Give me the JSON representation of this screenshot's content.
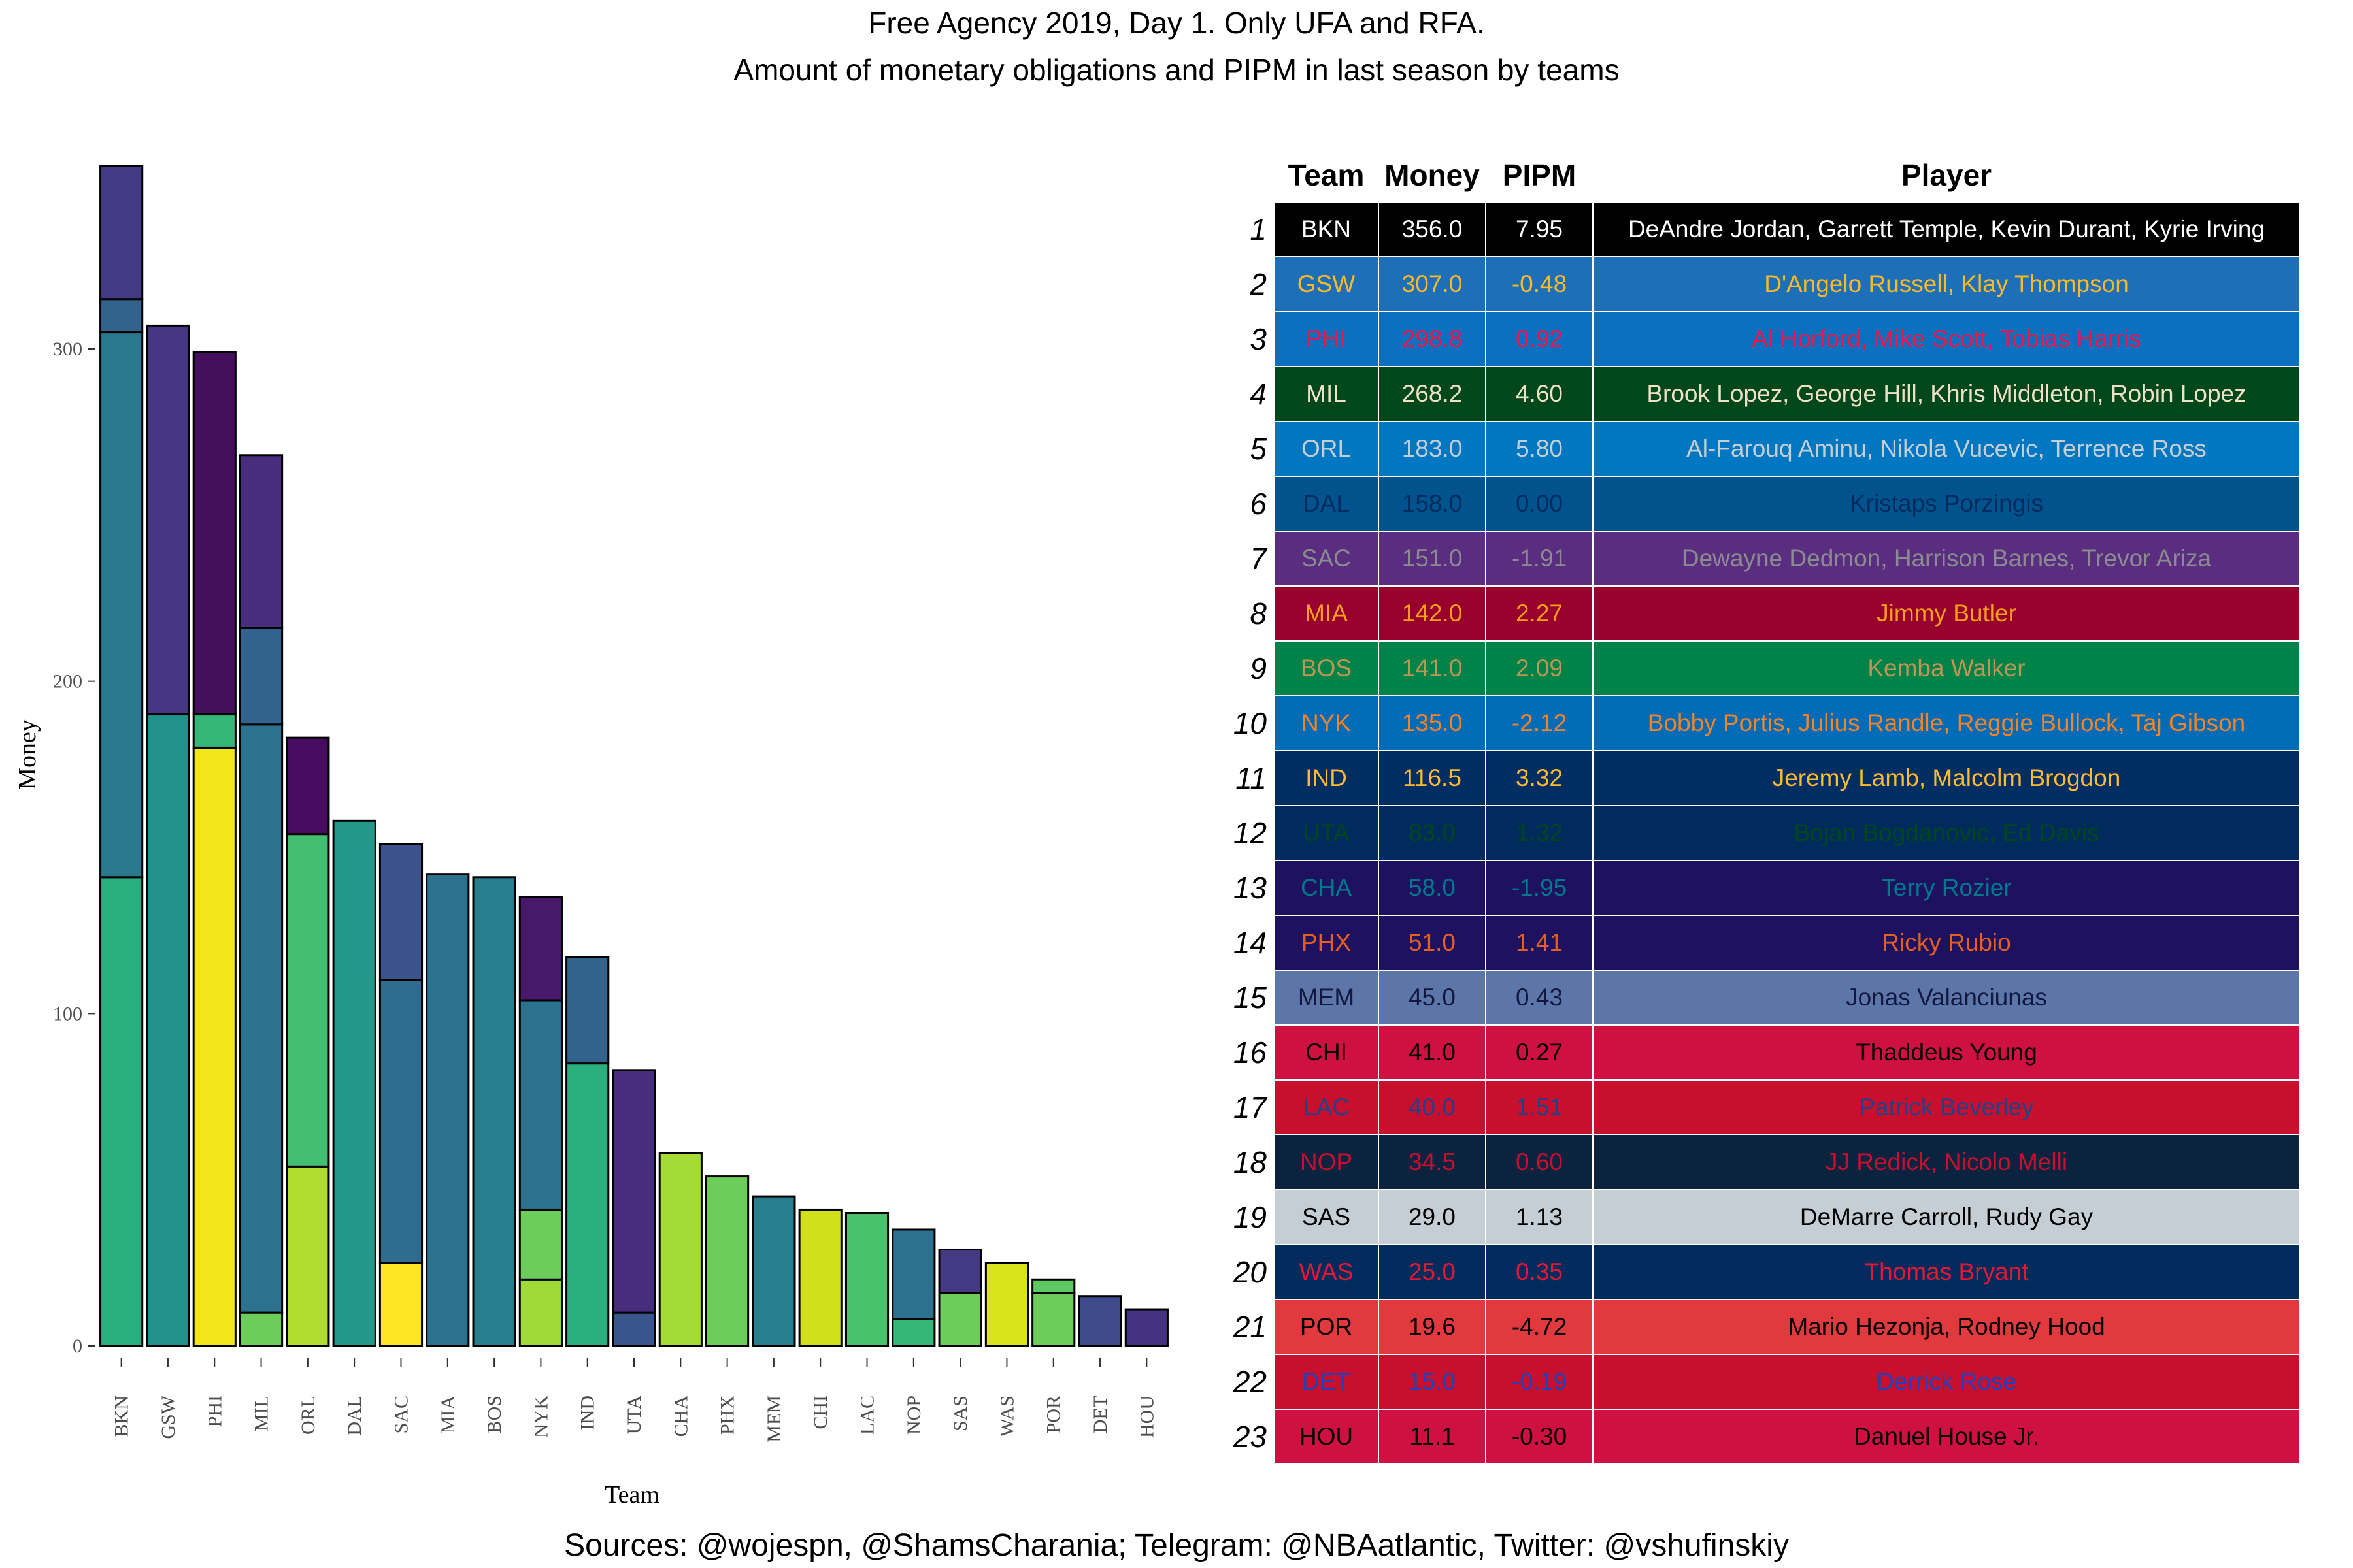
{
  "title": {
    "line1": "Free Agency 2019, Day 1. Only UFA and RFA.",
    "line2": "Amount of monetary obligations and PIPM in last season by teams"
  },
  "footer": "Sources: @wojespn, @ShamsCharania; Telegram: @NBAatlantic, Twitter: @vshufinskiy",
  "chart_data": {
    "type": "bar",
    "stacked": true,
    "xlabel": "Team",
    "ylabel": "Money",
    "ylim": [
      0,
      360
    ],
    "yticks": [
      0,
      100,
      200,
      300
    ],
    "grid": false,
    "legend": "none",
    "categories": [
      "BKN",
      "GSW",
      "PHI",
      "MIL",
      "ORL",
      "DAL",
      "SAC",
      "MIA",
      "BOS",
      "NYK",
      "IND",
      "UTA",
      "CHA",
      "PHX",
      "MEM",
      "CHI",
      "LAC",
      "NOP",
      "SAS",
      "WAS",
      "POR",
      "DET",
      "HOU"
    ],
    "segments": [
      [
        {
          "value": 141,
          "color": "#29af7f"
        },
        {
          "value": 164,
          "color": "#2a788e"
        },
        {
          "value": 10,
          "color": "#33638d"
        },
        {
          "value": 40,
          "color": "#443983"
        }
      ],
      [
        {
          "value": 190,
          "color": "#21918c"
        },
        {
          "value": 117,
          "color": "#453781"
        }
      ],
      [
        {
          "value": 180,
          "color": "#f2e61b"
        },
        {
          "value": 10,
          "color": "#35b779"
        },
        {
          "value": 109,
          "color": "#440f5d"
        }
      ],
      [
        {
          "value": 10,
          "color": "#6ccd5a"
        },
        {
          "value": 177,
          "color": "#2c728e"
        },
        {
          "value": 29,
          "color": "#33638d"
        },
        {
          "value": 52,
          "color": "#472d7b"
        }
      ],
      [
        {
          "value": 54,
          "color": "#b0dd2f"
        },
        {
          "value": 100,
          "color": "#42be71"
        },
        {
          "value": 29,
          "color": "#460c5f"
        }
      ],
      [
        {
          "value": 158,
          "color": "#23988a"
        }
      ],
      [
        {
          "value": 25,
          "color": "#fde725"
        },
        {
          "value": 85,
          "color": "#2e6d8e"
        },
        {
          "value": 41,
          "color": "#3b528b"
        }
      ],
      [
        {
          "value": 142,
          "color": "#2c728e"
        }
      ],
      [
        {
          "value": 141,
          "color": "#277f8e"
        }
      ],
      [
        {
          "value": 20,
          "color": "#a0da39"
        },
        {
          "value": 21,
          "color": "#6ccd5a"
        },
        {
          "value": 63,
          "color": "#2c728e"
        },
        {
          "value": 31,
          "color": "#48186a"
        }
      ],
      [
        {
          "value": 85,
          "color": "#2ab07f"
        },
        {
          "value": 32,
          "color": "#33638d"
        }
      ],
      [
        {
          "value": 10,
          "color": "#39568c"
        },
        {
          "value": 73,
          "color": "#472d7b"
        }
      ],
      [
        {
          "value": 58,
          "color": "#a5db36"
        }
      ],
      [
        {
          "value": 51,
          "color": "#6ccd5a"
        }
      ],
      [
        {
          "value": 45,
          "color": "#277f8e"
        }
      ],
      [
        {
          "value": 41,
          "color": "#d0e11c"
        }
      ],
      [
        {
          "value": 40,
          "color": "#4ac16d"
        }
      ],
      [
        {
          "value": 8,
          "color": "#35b779"
        },
        {
          "value": 27,
          "color": "#2c728e"
        }
      ],
      [
        {
          "value": 16,
          "color": "#6ccd5a"
        },
        {
          "value": 13,
          "color": "#443983"
        }
      ],
      [
        {
          "value": 25,
          "color": "#dae319"
        }
      ],
      [
        {
          "value": 16,
          "color": "#6ccd5a"
        },
        {
          "value": 4,
          "color": "#5ec962"
        }
      ],
      [
        {
          "value": 15,
          "color": "#3e4a89"
        }
      ],
      [
        {
          "value": 11,
          "color": "#46327e"
        }
      ]
    ]
  },
  "table": {
    "headers": [
      "Team",
      "Money",
      "PIPM",
      "Player"
    ],
    "rows": [
      {
        "rank": "1",
        "team": "BKN",
        "money": "356.0",
        "pipm": "7.95",
        "player": "DeAndre Jordan, Garrett Temple, Kevin Durant, Kyrie Irving",
        "bg": "#000000",
        "fg": "#ffffff"
      },
      {
        "rank": "2",
        "team": "GSW",
        "money": "307.0",
        "pipm": "-0.48",
        "player": "D'Angelo Russell, Klay Thompson",
        "bg": "#1d6fb8",
        "fg": "#fdb927"
      },
      {
        "rank": "3",
        "team": "PHI",
        "money": "298.8",
        "pipm": "0.92",
        "player": "Al Horford, Mike Scott, Tobias Harris",
        "bg": "#0a6fbf",
        "fg": "#ed174c"
      },
      {
        "rank": "4",
        "team": "MIL",
        "money": "268.2",
        "pipm": "4.60",
        "player": "Brook Lopez, George Hill, Khris Middleton, Robin Lopez",
        "bg": "#00471b",
        "fg": "#eee1c6"
      },
      {
        "rank": "5",
        "team": "ORL",
        "money": "183.0",
        "pipm": "5.80",
        "player": "Al-Farouq Aminu, Nikola Vucevic, Terrence Ross",
        "bg": "#0077c0",
        "fg": "#c4ced4"
      },
      {
        "rank": "6",
        "team": "DAL",
        "money": "158.0",
        "pipm": "0.00",
        "player": "Kristaps Porzingis",
        "bg": "#00538c",
        "fg": "#002b5e"
      },
      {
        "rank": "7",
        "team": "SAC",
        "money": "151.0",
        "pipm": "-1.91",
        "player": "Dewayne Dedmon, Harrison Barnes, Trevor Ariza",
        "bg": "#5a2d81",
        "fg": "#8a8d8f"
      },
      {
        "rank": "8",
        "team": "MIA",
        "money": "142.0",
        "pipm": "2.27",
        "player": "Jimmy Butler",
        "bg": "#98002e",
        "fg": "#f9a01b"
      },
      {
        "rank": "9",
        "team": "BOS",
        "money": "141.0",
        "pipm": "2.09",
        "player": "Kemba Walker",
        "bg": "#008348",
        "fg": "#bb9753"
      },
      {
        "rank": "10",
        "team": "NYK",
        "money": "135.0",
        "pipm": "-2.12",
        "player": "Bobby Portis, Julius Randle, Reggie Bullock, Taj Gibson",
        "bg": "#006bb6",
        "fg": "#f58426"
      },
      {
        "rank": "11",
        "team": "IND",
        "money": "116.5",
        "pipm": "3.32",
        "player": "Jeremy Lamb, Malcolm Brogdon",
        "bg": "#002d62",
        "fg": "#fdbb30"
      },
      {
        "rank": "12",
        "team": "UTA",
        "money": "83.0",
        "pipm": "1.32",
        "player": "Bojan Bogdanovic, Ed Davis",
        "bg": "#002b5c",
        "fg": "#00471b"
      },
      {
        "rank": "13",
        "team": "CHA",
        "money": "58.0",
        "pipm": "-1.95",
        "player": "Terry Rozier",
        "bg": "#1d1160",
        "fg": "#00788c"
      },
      {
        "rank": "14",
        "team": "PHX",
        "money": "51.0",
        "pipm": "1.41",
        "player": "Ricky Rubio",
        "bg": "#1d1160",
        "fg": "#e56020"
      },
      {
        "rank": "15",
        "team": "MEM",
        "money": "45.0",
        "pipm": "0.43",
        "player": "Jonas Valanciunas",
        "bg": "#5d76a9",
        "fg": "#12173f"
      },
      {
        "rank": "16",
        "team": "CHI",
        "money": "41.0",
        "pipm": "0.27",
        "player": "Thaddeus Young",
        "bg": "#ce1141",
        "fg": "#000000"
      },
      {
        "rank": "17",
        "team": "LAC",
        "money": "40.0",
        "pipm": "1.51",
        "player": "Patrick Beverley",
        "bg": "#c8102e",
        "fg": "#1d428a"
      },
      {
        "rank": "18",
        "team": "NOP",
        "money": "34.5",
        "pipm": "0.60",
        "player": "JJ Redick, Nicolo Melli",
        "bg": "#0c2340",
        "fg": "#c8102e"
      },
      {
        "rank": "19",
        "team": "SAS",
        "money": "29.0",
        "pipm": "1.13",
        "player": "DeMarre Carroll, Rudy Gay",
        "bg": "#c4ced4",
        "fg": "#000000"
      },
      {
        "rank": "20",
        "team": "WAS",
        "money": "25.0",
        "pipm": "0.35",
        "player": "Thomas Bryant",
        "bg": "#002b5c",
        "fg": "#e31837"
      },
      {
        "rank": "21",
        "team": "POR",
        "money": "19.6",
        "pipm": "-4.72",
        "player": "Mario Hezonja, Rodney Hood",
        "bg": "#e03a3e",
        "fg": "#000000"
      },
      {
        "rank": "22",
        "team": "DET",
        "money": "15.0",
        "pipm": "-0.19",
        "player": "Derrick Rose",
        "bg": "#c8102e",
        "fg": "#1d42ba"
      },
      {
        "rank": "23",
        "team": "HOU",
        "money": "11.1",
        "pipm": "-0.30",
        "player": "Danuel House Jr.",
        "bg": "#ce1141",
        "fg": "#000000"
      }
    ]
  }
}
